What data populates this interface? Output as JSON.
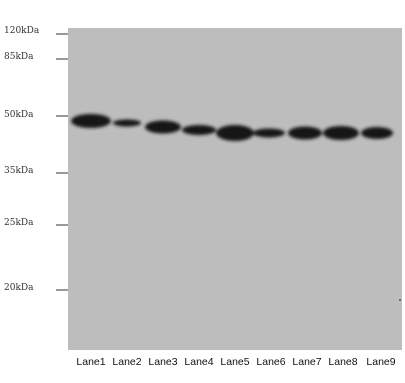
{
  "markers": [
    {
      "label": "120kDa"
    },
    {
      "label": "85kDa"
    },
    {
      "label": "50kDa"
    },
    {
      "label": "35kDa"
    },
    {
      "label": "25kDa"
    },
    {
      "label": "20kDa"
    }
  ],
  "lanes": [
    {
      "label": "Lane1"
    },
    {
      "label": "Lane2"
    },
    {
      "label": "Lane3"
    },
    {
      "label": "Lane4"
    },
    {
      "label": "Lane5"
    },
    {
      "label": "Lane6"
    },
    {
      "label": "Lane7"
    },
    {
      "label": "Lane8"
    },
    {
      "label": "Lane9"
    }
  ],
  "colors": {
    "membrane": "#bdbdbd",
    "band": "#141414"
  }
}
